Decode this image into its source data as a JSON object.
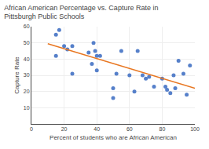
{
  "chart_data": {
    "type": "scatter",
    "title": "African American Percentage vs. Capture Rate in Pittsburgh Public Schools",
    "xlabel": "Percent of students who are African American",
    "ylabel": "Capture Rate",
    "xlim": [
      0,
      100
    ],
    "ylim": [
      0,
      60
    ],
    "xticks": [
      0,
      20,
      40,
      60,
      80,
      100
    ],
    "yticks": [
      10,
      20,
      30,
      40,
      50,
      60
    ],
    "grid": true,
    "series": [
      {
        "type": "scatter",
        "color": "#4472c4",
        "x": [
          15,
          15,
          17,
          20,
          22,
          25,
          25,
          35,
          37,
          38,
          39,
          40,
          40,
          42,
          50,
          50,
          52,
          55,
          60,
          63,
          65,
          68,
          70,
          72,
          75,
          80,
          82,
          83,
          85,
          87,
          88,
          90,
          93,
          95,
          97
        ],
        "values": [
          55,
          42,
          58,
          48,
          46,
          48,
          31,
          44,
          37,
          50,
          45,
          33,
          42,
          42,
          16,
          22,
          31,
          45,
          30,
          20,
          45,
          30,
          28,
          29,
          23,
          28,
          23,
          21,
          19,
          30,
          22,
          39,
          31,
          18,
          36
        ]
      },
      {
        "type": "line",
        "color": "#e87722",
        "x": [
          10,
          100
        ],
        "values": [
          49.5,
          22.0
        ]
      }
    ]
  }
}
